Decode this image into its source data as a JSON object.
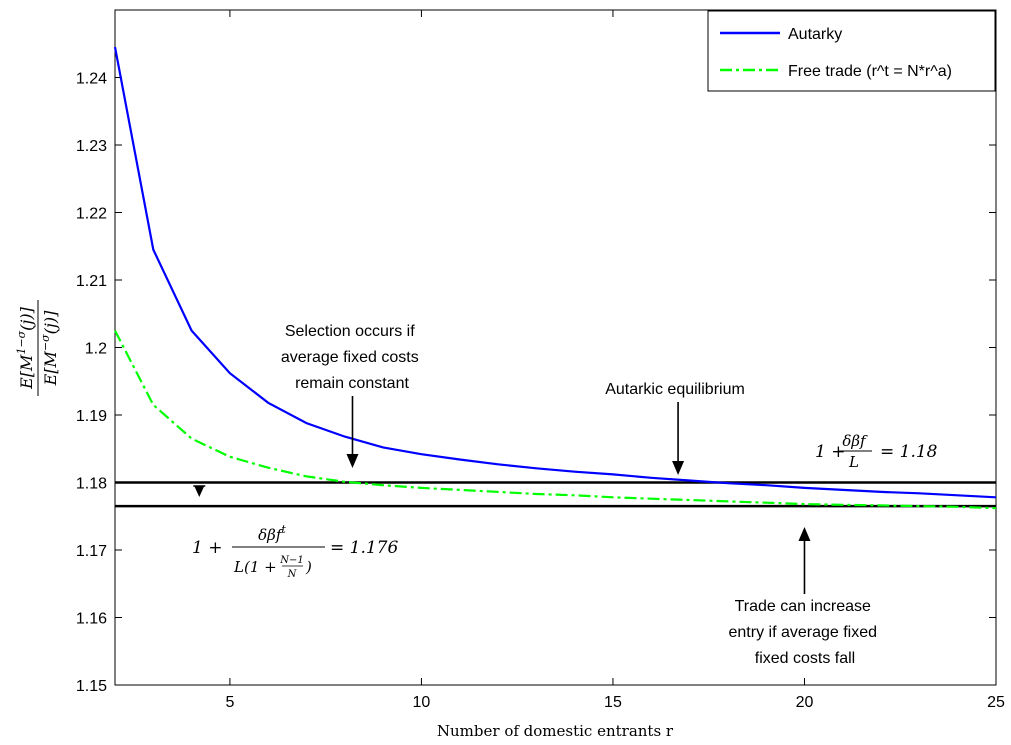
{
  "chart_data": {
    "type": "line",
    "xlabel": "Number of domestic entrants r",
    "ylabel": "E[M^(1−σ)(j)] / E[M^(−σ)(j)]",
    "xlim": [
      2,
      25
    ],
    "ylim": [
      1.15,
      1.25
    ],
    "xticks": [
      5,
      10,
      15,
      20,
      25
    ],
    "yticks": [
      1.15,
      1.16,
      1.17,
      1.18,
      1.19,
      1.2,
      1.21,
      1.22,
      1.23,
      1.24
    ],
    "grid": false,
    "legend_position": "top-right",
    "series": [
      {
        "name": "Autarky",
        "color": "#0000ff",
        "style": "solid",
        "x": [
          2,
          3,
          4,
          5,
          6,
          7,
          8,
          9,
          10,
          11,
          12,
          13,
          14,
          15,
          16,
          17,
          18,
          19,
          20,
          21,
          22,
          23,
          24,
          25
        ],
        "y": [
          1.2445,
          1.2145,
          1.2025,
          1.1962,
          1.1918,
          1.1888,
          1.1868,
          1.1852,
          1.1842,
          1.1834,
          1.1827,
          1.1821,
          1.1816,
          1.1812,
          1.1807,
          1.1803,
          1.1799,
          1.1796,
          1.1792,
          1.1789,
          1.1786,
          1.1784,
          1.1781,
          1.1778
        ]
      },
      {
        "name": "Free trade (r^t = N*r^a)",
        "color": "#00ff00",
        "style": "dashdot",
        "x": [
          2,
          3,
          4,
          5,
          6,
          7,
          8,
          9,
          10,
          11,
          12,
          13,
          14,
          15,
          16,
          17,
          18,
          19,
          20,
          21,
          22,
          23,
          24,
          25
        ],
        "y": [
          1.2025,
          1.1915,
          1.1865,
          1.1838,
          1.1822,
          1.1809,
          1.1801,
          1.1796,
          1.1792,
          1.1789,
          1.1786,
          1.1783,
          1.1781,
          1.1778,
          1.1776,
          1.1774,
          1.1772,
          1.177,
          1.1768,
          1.1767,
          1.1766,
          1.1765,
          1.1764,
          1.1762
        ]
      }
    ],
    "hlines": [
      {
        "y": 1.18,
        "color": "#000000"
      },
      {
        "y": 1.1765,
        "color": "#000000"
      }
    ],
    "annotations": {
      "selection": {
        "lines": [
          "Selection occurs if",
          "average fixed costs",
          "remain constant"
        ],
        "arrow_x": 8.2
      },
      "autarkic": {
        "lines": [
          "Autarkic equilibrium"
        ],
        "arrow_x": 16.7
      },
      "trade": {
        "lines": [
          "Trade can increase",
          "entry if average fixed",
          "fixed costs fall"
        ],
        "arrow_x": 20
      },
      "small_arrow_x": 4.2,
      "formula_upper_value": "= 1.18",
      "formula_lower_value": "= 1.176"
    }
  }
}
